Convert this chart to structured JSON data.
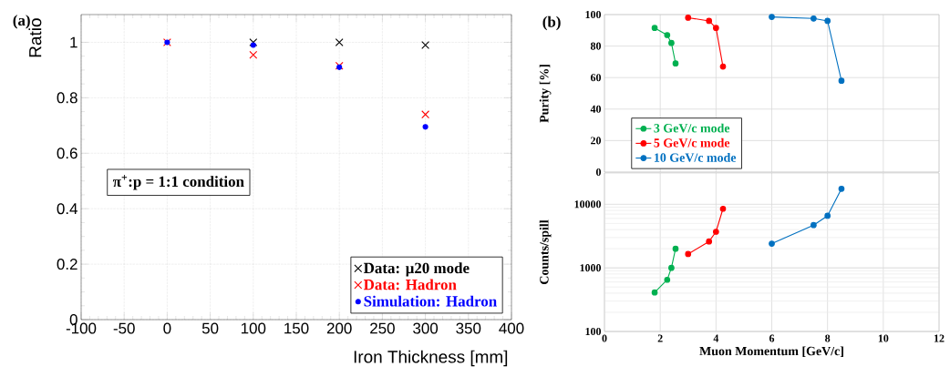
{
  "chart_data": [
    {
      "type": "scatter",
      "title": "(a)",
      "xlabel": "Iron Thickness [mm]",
      "ylabel": "Ratio",
      "x": [
        0,
        100,
        200,
        300
      ],
      "series": [
        {
          "name": "Data: μ20 mode",
          "color": "#000000",
          "marker": "cross",
          "values": [
            null,
            1.0,
            1.0,
            0.99
          ]
        },
        {
          "name": "Data: Hadron",
          "color": "#ff0000",
          "marker": "cross",
          "values": [
            1.0,
            0.955,
            0.915,
            0.74
          ]
        },
        {
          "name": "Simulation: Hadron",
          "color": "#0000ff",
          "marker": "circle",
          "values": [
            1.0,
            0.99,
            0.91,
            0.695
          ]
        }
      ],
      "xlim": [
        -100,
        400
      ],
      "ylim": [
        0,
        1.1
      ],
      "xticks": [
        -100,
        -50,
        0,
        50,
        100,
        150,
        200,
        250,
        300,
        350,
        400
      ],
      "yticks": [
        0,
        0.2,
        0.4,
        0.6,
        0.8,
        1
      ],
      "grid": true,
      "legend": "bottom right",
      "annotations": [
        "π$^{+}$:p = 1:1 condition"
      ]
    },
    {
      "type": "line",
      "title": "(b)",
      "ylabel": "Purity [%]",
      "marker": "circle",
      "series": [
        {
          "name": "3 GeV/c mode",
          "color": "#00b050",
          "x": [
            1.8,
            2.25,
            2.4,
            2.55
          ],
          "values": [
            91.5,
            87,
            82,
            69
          ]
        },
        {
          "name": "5 GeV/c mode",
          "color": "#ff0000",
          "x": [
            3.0,
            3.75,
            4.0,
            4.25
          ],
          "values": [
            98,
            96,
            91.5,
            67
          ]
        },
        {
          "name": "10 GeV/c mode",
          "color": "#0070c0",
          "x": [
            6.0,
            7.5,
            8.0,
            8.5
          ],
          "values": [
            98.5,
            97.5,
            96,
            58
          ]
        }
      ],
      "xlim": [
        0,
        12
      ],
      "ylim": [
        0,
        100
      ],
      "xticks": [
        0,
        2,
        4,
        6,
        8,
        10,
        12
      ],
      "yticks": [
        0,
        20,
        40,
        60,
        80,
        100
      ],
      "grid": true,
      "legend": "bottom left",
      "tick_labels": "y"
    },
    {
      "type": "line",
      "xlabel": "Muon Momentum [GeV/c]",
      "ylabel": "Counts/spill",
      "marker": "circle",
      "log": "y",
      "series": [
        {
          "color": "#00b050",
          "x": [
            1.8,
            2.25,
            2.4,
            2.55
          ],
          "values": [
            410,
            650,
            1000,
            2000
          ]
        },
        {
          "color": "#ff0000",
          "x": [
            3.0,
            3.75,
            4.0,
            4.25
          ],
          "values": [
            1650,
            2600,
            3700,
            8500
          ]
        },
        {
          "color": "#0070c0",
          "x": [
            6.0,
            7.5,
            8.0,
            8.5
          ],
          "values": [
            2400,
            4700,
            6600,
            17500
          ]
        }
      ],
      "xlim": [
        0,
        12
      ],
      "ylim": [
        100,
        31000
      ],
      "xticks": [
        0,
        2,
        4,
        6,
        8,
        10,
        12
      ],
      "yticks": [
        100,
        1000,
        10000
      ],
      "grid": true
    }
  ]
}
